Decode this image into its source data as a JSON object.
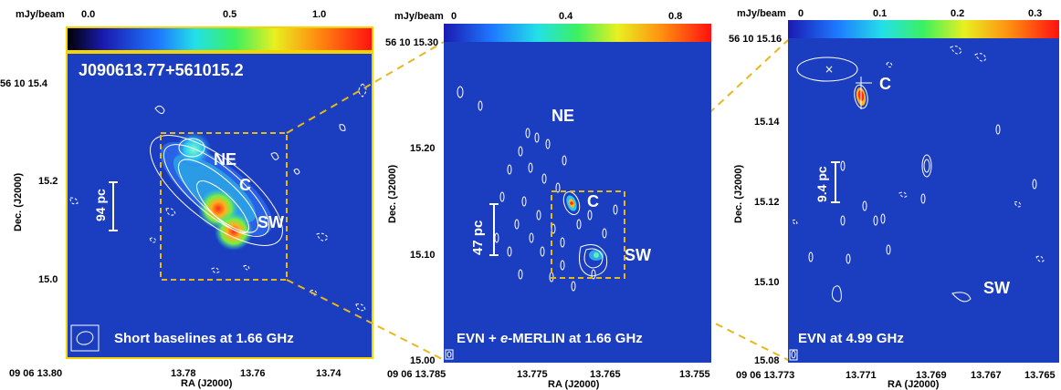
{
  "chart_data": [
    {
      "type": "heatmap",
      "title": "J090613.77+561015.2",
      "caption": "Short baselines at 1.66 GHz",
      "colorbar": {
        "unit": "mJy/beam",
        "ticks": [
          "0.0",
          "0.5",
          "1.0"
        ],
        "range": [
          0,
          1.2
        ]
      },
      "xlabel": "RA (J2000)",
      "ylabel": "Dec. (J2000)",
      "x_ticks": [
        "09 06 13.80",
        "13.78",
        "13.76",
        "13.74"
      ],
      "y_ticks": [
        "56 10 15.4",
        "15.2",
        "15.0"
      ],
      "components": [
        "NE",
        "C",
        "SW"
      ],
      "scalebar": "94 pc"
    },
    {
      "type": "heatmap",
      "caption_pre": "EVN + ",
      "caption_ital": "e",
      "caption_post": "-MERLIN at 1.66 GHz",
      "colorbar": {
        "unit": "mJy/beam",
        "ticks": [
          "0",
          "0.4",
          "0.8"
        ],
        "range": [
          0,
          0.95
        ]
      },
      "xlabel": "RA (J2000)",
      "ylabel": "Dec. (J2000)",
      "x_ticks": [
        "09 06 13.785",
        "13.775",
        "13.765",
        "13.755"
      ],
      "y_ticks": [
        "56 10 15.30",
        "15.20",
        "15.10",
        "15.00"
      ],
      "components": [
        "NE",
        "C",
        "SW"
      ],
      "scalebar": "47 pc"
    },
    {
      "type": "heatmap",
      "caption": "EVN at 4.99 GHz",
      "colorbar": {
        "unit": "mJy/beam",
        "ticks": [
          "0",
          "0.1",
          "0.2",
          "0.3"
        ],
        "range": [
          0,
          0.34
        ]
      },
      "xlabel": "RA (J2000)",
      "ylabel": "Dec. (J2000)",
      "x_ticks": [
        "09 06 13.773",
        "13.771",
        "13.769",
        "13.767",
        "13.765"
      ],
      "y_ticks": [
        "56 10 15.16",
        "15.14",
        "15.12",
        "15.10",
        "15.08"
      ],
      "components": [
        "C",
        "SW"
      ],
      "scalebar": "9.4 pc"
    }
  ],
  "colors": {
    "map_background": "#1b3dbf",
    "frame": "#f5d400",
    "dashed_connector": "#e8b71a",
    "contour": "#ffffff"
  }
}
